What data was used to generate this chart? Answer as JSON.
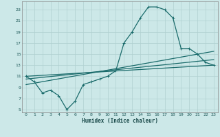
{
  "xlabel": "Humidex (Indice chaleur)",
  "xlim": [
    -0.5,
    23.5
  ],
  "ylim": [
    4.5,
    24.5
  ],
  "xticks": [
    0,
    1,
    2,
    3,
    4,
    5,
    6,
    7,
    8,
    9,
    10,
    11,
    12,
    13,
    14,
    15,
    16,
    17,
    18,
    19,
    20,
    21,
    22,
    23
  ],
  "yticks": [
    5,
    7,
    9,
    11,
    13,
    15,
    17,
    19,
    21,
    23
  ],
  "background_color": "#cce8e8",
  "grid_color": "#b0d0d0",
  "line_color": "#1a6b6b",
  "line1_x": [
    0,
    1,
    2,
    3,
    4,
    5,
    6,
    7,
    8,
    9,
    10,
    11,
    12,
    13,
    14,
    15,
    16,
    17,
    18,
    19,
    20,
    21,
    22,
    23
  ],
  "line1_y": [
    11,
    10,
    8,
    8.5,
    7.5,
    5,
    6.5,
    9.5,
    10,
    10.5,
    11,
    12,
    17,
    19,
    21.5,
    23.5,
    23.5,
    23,
    21.5,
    16,
    16,
    15,
    13.5,
    13
  ],
  "line2_x": [
    0,
    23
  ],
  "line2_y": [
    11,
    13
  ],
  "line3_x": [
    0,
    23
  ],
  "line3_y": [
    9.5,
    15.5
  ],
  "line4_x": [
    0,
    23
  ],
  "line4_y": [
    10.5,
    14
  ]
}
